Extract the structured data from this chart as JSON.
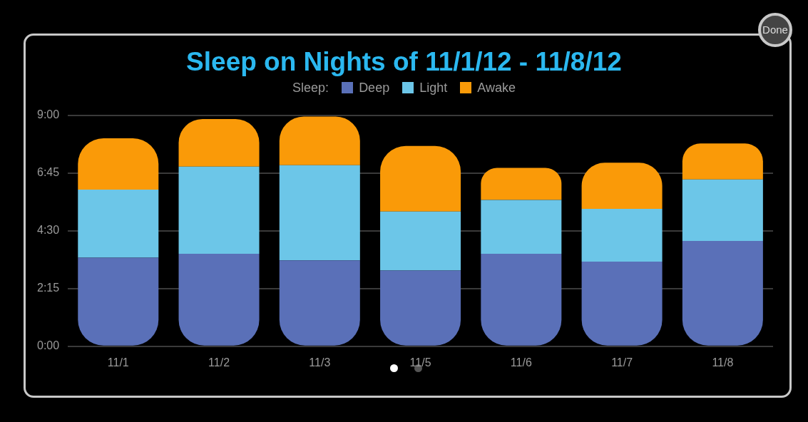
{
  "chart_data": {
    "type": "bar",
    "title": "Sleep on Nights of 11/1/12 - 11/8/12",
    "legend_title": "Sleep:",
    "legend": "top",
    "stacked": true,
    "grid": "y",
    "categories": [
      "11/1",
      "11/2",
      "11/3",
      "11/5",
      "11/6",
      "11/7",
      "11/8"
    ],
    "series": [
      {
        "name": "Deep",
        "color": "#5a70b8",
        "values": [
          3.45,
          3.6,
          3.35,
          2.95,
          3.6,
          3.3,
          4.1
        ]
      },
      {
        "name": "Light",
        "color": "#6cc6e8",
        "values": [
          2.65,
          3.4,
          3.7,
          2.3,
          2.1,
          2.05,
          2.4
        ]
      },
      {
        "name": "Awake",
        "color": "#fa9a08",
        "values": [
          2.0,
          1.85,
          1.9,
          2.55,
          1.25,
          1.8,
          1.4
        ]
      }
    ],
    "ylim": [
      0,
      9
    ],
    "yticks": [
      {
        "value": 0,
        "label": "0:00"
      },
      {
        "value": 2.25,
        "label": "2:15"
      },
      {
        "value": 4.5,
        "label": "4:30"
      },
      {
        "value": 6.75,
        "label": "6:45"
      },
      {
        "value": 9,
        "label": "9:00"
      }
    ],
    "annotations": [
      "Done"
    ]
  }
}
